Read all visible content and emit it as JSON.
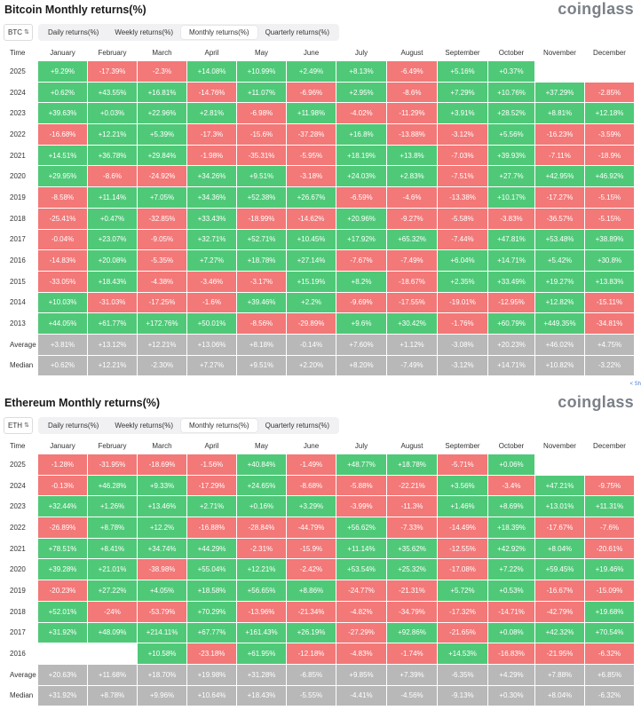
{
  "months": [
    "January",
    "February",
    "March",
    "April",
    "May",
    "June",
    "July",
    "August",
    "September",
    "October",
    "November",
    "December"
  ],
  "time_label": "Time",
  "tabs": [
    "Daily returns(%)",
    "Weekly returns(%)",
    "Monthly returns(%)",
    "Quarterly returns(%)"
  ],
  "active_tab": 2,
  "brand": "coinglass",
  "share_label": "< Sh",
  "colors": {
    "positive": "#4fc978",
    "negative": "#f37878",
    "stat": "#b8b8b8"
  },
  "btc": {
    "title": "Bitcoin Monthly returns(%)",
    "selector": "BTC",
    "rows": [
      {
        "year": "2025",
        "v": [
          "+9.29%",
          "-17.39%",
          "-2.3%",
          "+14.08%",
          "+10.99%",
          "+2.49%",
          "+8.13%",
          "-6.49%",
          "+5.16%",
          "+0.37%",
          "",
          ""
        ]
      },
      {
        "year": "2024",
        "v": [
          "+0.62%",
          "+43.55%",
          "+16.81%",
          "-14.76%",
          "+11.07%",
          "-6.96%",
          "+2.95%",
          "-8.6%",
          "+7.29%",
          "+10.76%",
          "+37.29%",
          "-2.85%"
        ]
      },
      {
        "year": "2023",
        "v": [
          "+39.63%",
          "+0.03%",
          "+22.96%",
          "+2.81%",
          "-6.98%",
          "+11.98%",
          "-4.02%",
          "-11.29%",
          "+3.91%",
          "+28.52%",
          "+8.81%",
          "+12.18%"
        ]
      },
      {
        "year": "2022",
        "v": [
          "-16.68%",
          "+12.21%",
          "+5.39%",
          "-17.3%",
          "-15.6%",
          "-37.28%",
          "+16.8%",
          "-13.88%",
          "-3.12%",
          "+5.56%",
          "-16.23%",
          "-3.59%"
        ]
      },
      {
        "year": "2021",
        "v": [
          "+14.51%",
          "+36.78%",
          "+29.84%",
          "-1.98%",
          "-35.31%",
          "-5.95%",
          "+18.19%",
          "+13.8%",
          "-7.03%",
          "+39.93%",
          "-7.11%",
          "-18.9%"
        ]
      },
      {
        "year": "2020",
        "v": [
          "+29.95%",
          "-8.6%",
          "-24.92%",
          "+34.26%",
          "+9.51%",
          "-3.18%",
          "+24.03%",
          "+2.83%",
          "-7.51%",
          "+27.7%",
          "+42.95%",
          "+46.92%"
        ]
      },
      {
        "year": "2019",
        "v": [
          "-8.58%",
          "+11.14%",
          "+7.05%",
          "+34.36%",
          "+52.38%",
          "+26.67%",
          "-6.59%",
          "-4.6%",
          "-13.38%",
          "+10.17%",
          "-17.27%",
          "-5.15%"
        ]
      },
      {
        "year": "2018",
        "v": [
          "-25.41%",
          "+0.47%",
          "-32.85%",
          "+33.43%",
          "-18.99%",
          "-14.62%",
          "+20.96%",
          "-9.27%",
          "-5.58%",
          "-3.83%",
          "-36.57%",
          "-5.15%"
        ]
      },
      {
        "year": "2017",
        "v": [
          "-0.04%",
          "+23.07%",
          "-9.05%",
          "+32.71%",
          "+52.71%",
          "+10.45%",
          "+17.92%",
          "+65.32%",
          "-7.44%",
          "+47.81%",
          "+53.48%",
          "+38.89%"
        ]
      },
      {
        "year": "2016",
        "v": [
          "-14.83%",
          "+20.08%",
          "-5.35%",
          "+7.27%",
          "+18.78%",
          "+27.14%",
          "-7.67%",
          "-7.49%",
          "+6.04%",
          "+14.71%",
          "+5.42%",
          "+30.8%"
        ]
      },
      {
        "year": "2015",
        "v": [
          "-33.05%",
          "+18.43%",
          "-4.38%",
          "-3.46%",
          "-3.17%",
          "+15.19%",
          "+8.2%",
          "-18.67%",
          "+2.35%",
          "+33.49%",
          "+19.27%",
          "+13.83%"
        ]
      },
      {
        "year": "2014",
        "v": [
          "+10.03%",
          "-31.03%",
          "-17.25%",
          "-1.6%",
          "+39.46%",
          "+2.2%",
          "-9.69%",
          "-17.55%",
          "-19.01%",
          "-12.95%",
          "+12.82%",
          "-15.11%"
        ]
      },
      {
        "year": "2013",
        "v": [
          "+44.05%",
          "+61.77%",
          "+172.76%",
          "+50.01%",
          "-8.56%",
          "-29.89%",
          "+9.6%",
          "+30.42%",
          "-1.76%",
          "+60.79%",
          "+449.35%",
          "-34.81%"
        ]
      }
    ],
    "average": {
      "label": "Average",
      "v": [
        "+3.81%",
        "+13.12%",
        "+12.21%",
        "+13.06%",
        "+8.18%",
        "-0.14%",
        "+7.60%",
        "+1.12%",
        "-3.08%",
        "+20.23%",
        "+46.02%",
        "+4.75%"
      ]
    },
    "median": {
      "label": "Median",
      "v": [
        "+0.62%",
        "+12.21%",
        "-2.30%",
        "+7.27%",
        "+9.51%",
        "+2.20%",
        "+8.20%",
        "-7.49%",
        "-3.12%",
        "+14.71%",
        "+10.82%",
        "-3.22%"
      ]
    }
  },
  "eth": {
    "title": "Ethereum Monthly returns(%)",
    "selector": "ETH",
    "rows": [
      {
        "year": "2025",
        "v": [
          "-1.28%",
          "-31.95%",
          "-18.69%",
          "-1.56%",
          "+40.84%",
          "-1.49%",
          "+48.77%",
          "+18.78%",
          "-5.71%",
          "+0.06%",
          "",
          ""
        ]
      },
      {
        "year": "2024",
        "v": [
          "-0.13%",
          "+46.28%",
          "+9.33%",
          "-17.29%",
          "+24.65%",
          "-8.68%",
          "-5.88%",
          "-22.21%",
          "+3.56%",
          "-3.4%",
          "+47.21%",
          "-9.75%"
        ]
      },
      {
        "year": "2023",
        "v": [
          "+32.44%",
          "+1.26%",
          "+13.46%",
          "+2.71%",
          "+0.16%",
          "+3.29%",
          "-3.99%",
          "-11.3%",
          "+1.46%",
          "+8.69%",
          "+13.01%",
          "+11.31%"
        ]
      },
      {
        "year": "2022",
        "v": [
          "-26.89%",
          "+8.78%",
          "+12.2%",
          "-16.88%",
          "-28.84%",
          "-44.79%",
          "+56.62%",
          "-7.33%",
          "-14.49%",
          "+18.39%",
          "-17.67%",
          "-7.6%"
        ]
      },
      {
        "year": "2021",
        "v": [
          "+78.51%",
          "+8.41%",
          "+34.74%",
          "+44.29%",
          "-2.31%",
          "-15.9%",
          "+11.14%",
          "+35.62%",
          "-12.55%",
          "+42.92%",
          "+8.04%",
          "-20.61%"
        ]
      },
      {
        "year": "2020",
        "v": [
          "+39.28%",
          "+21.01%",
          "-38.98%",
          "+55.04%",
          "+12.21%",
          "-2.42%",
          "+53.54%",
          "+25.32%",
          "-17.08%",
          "+7.22%",
          "+59.45%",
          "+19.46%"
        ]
      },
      {
        "year": "2019",
        "v": [
          "-20.23%",
          "+27.22%",
          "+4.05%",
          "+18.58%",
          "+56.65%",
          "+8.86%",
          "-24.77%",
          "-21.31%",
          "+5.72%",
          "+0.53%",
          "-16.67%",
          "-15.09%"
        ]
      },
      {
        "year": "2018",
        "v": [
          "+52.01%",
          "-24%",
          "-53.79%",
          "+70.29%",
          "-13.96%",
          "-21.34%",
          "-4.82%",
          "-34.79%",
          "-17.32%",
          "-14.71%",
          "-42.79%",
          "+19.68%"
        ]
      },
      {
        "year": "2017",
        "v": [
          "+31.92%",
          "+48.09%",
          "+214.11%",
          "+67.77%",
          "+161.43%",
          "+26.19%",
          "-27.29%",
          "+92.86%",
          "-21.65%",
          "+0.08%",
          "+42.32%",
          "+70.54%"
        ]
      },
      {
        "year": "2016",
        "v": [
          "",
          "",
          "+10.58%",
          "-23.18%",
          "+61.95%",
          "-12.18%",
          "-4.83%",
          "-1.74%",
          "+14.53%",
          "-16.83%",
          "-21.95%",
          "-6.32%"
        ]
      }
    ],
    "average": {
      "label": "Average",
      "v": [
        "+20.63%",
        "+11.68%",
        "+18.70%",
        "+19.98%",
        "+31.28%",
        "-6.85%",
        "+9.85%",
        "+7.39%",
        "-6.35%",
        "+4.29%",
        "+7.88%",
        "+6.85%"
      ]
    },
    "median": {
      "label": "Median",
      "v": [
        "+31.92%",
        "+8.78%",
        "+9.96%",
        "+10.64%",
        "+18.43%",
        "-5.55%",
        "-4.41%",
        "-4.56%",
        "-9.13%",
        "+0.30%",
        "+8.04%",
        "-6.32%"
      ]
    }
  }
}
